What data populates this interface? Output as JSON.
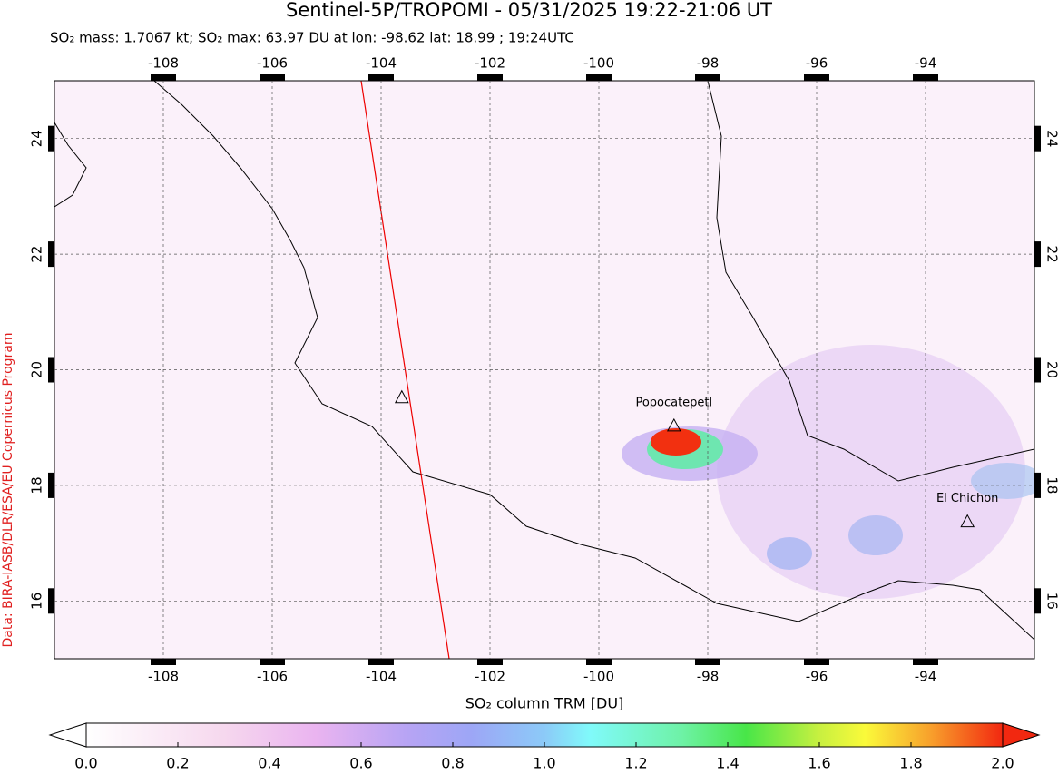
{
  "map": {
    "title": "Sentinel-5P/TROPOMI - 05/31/2025 19:22-21:06 UT",
    "subtitle": "SO₂ mass: 1.7067 kt; SO₂ max: 63.97 DU at lon: -98.62 lat: 18.99 ; 19:24UTC",
    "credit": "Data: BIRA-IASB/DLR/ESA/EU Copernicus Program",
    "xlim": [
      -110,
      -92
    ],
    "ylim": [
      15,
      25
    ],
    "xticks": [
      -108,
      -106,
      -104,
      -102,
      -100,
      -98,
      -96,
      -94
    ],
    "yticks": [
      16,
      18,
      20,
      22,
      24
    ],
    "volcanoes": [
      {
        "label": "Popocatepetl",
        "lon": -98.62,
        "lat": 19.02
      },
      {
        "label": "El Chichon",
        "lon": -93.23,
        "lat": 17.36
      },
      {
        "lon": -103.62,
        "lat": 19.51
      }
    ],
    "colorbar": {
      "label": "SO₂ column TRM [DU]",
      "lim": [
        0,
        2
      ],
      "ticks": [
        {
          "value": 0,
          "label": "0.0"
        },
        {
          "value": 0.2,
          "label": "0.2"
        },
        {
          "value": 0.4,
          "label": "0.4"
        },
        {
          "value": 0.6,
          "label": "0.6"
        },
        {
          "value": 0.8,
          "label": "0.8"
        },
        {
          "value": 1,
          "label": "1.0"
        },
        {
          "value": 1.2,
          "label": "1.2"
        },
        {
          "value": 1.4,
          "label": "1.4"
        },
        {
          "value": 1.6,
          "label": "1.6"
        },
        {
          "value": 1.8,
          "label": "1.8"
        },
        {
          "value": 2,
          "label": "2.0"
        }
      ]
    }
  }
}
